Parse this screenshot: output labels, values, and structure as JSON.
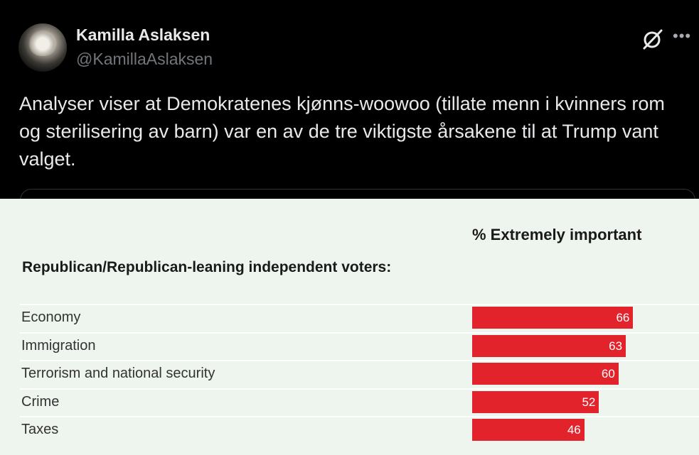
{
  "tweet": {
    "author_name": "Kamilla Aslaksen",
    "author_handle": "@KamillaAslaksen",
    "text": "Analyser viser at Demokratenes kjønns-woowoo (tillate menn i kvinners rom og sterilisering av barn) var en av de tre viktigste årsakene til at Trump vant valget.",
    "more_icon": "more-icon",
    "grok_icon": "grok-icon"
  },
  "chart_data": {
    "type": "bar",
    "title": "% Extremely important",
    "group_label": "Republican/Republican-leaning independent voters:",
    "categories": [
      "Economy",
      "Immigration",
      "Terrorism and national security",
      "Crime",
      "Taxes"
    ],
    "values": [
      66,
      63,
      60,
      52,
      46
    ],
    "value_labels": [
      "66",
      "63",
      "60",
      "52",
      "46"
    ],
    "bar_color": "#e3232b",
    "xlim": [
      0,
      100
    ],
    "grid": false
  }
}
